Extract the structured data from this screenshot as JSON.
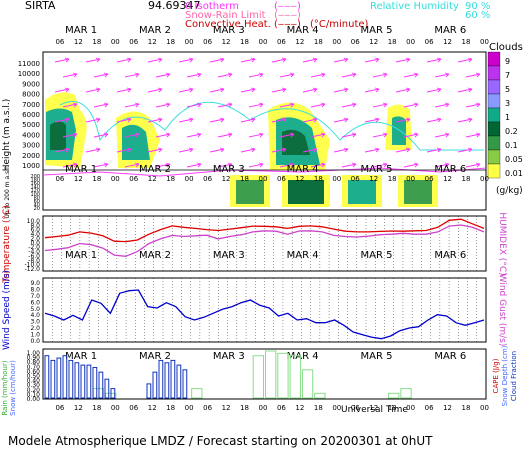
{
  "header": {
    "station": "SIRTA",
    "value": "94.69347",
    "legend": [
      {
        "label": "0 Isotherm",
        "color": "#ff33ff"
      },
      {
        "label": "Snow-Rain Limit",
        "color": "#ff66aa"
      },
      {
        "label": "Convective Heat.",
        "color": "#cc0000"
      }
    ],
    "convective_unit": "(°C/minute)",
    "rh_label": "Relative Humidity",
    "rh_values": [
      "90 %",
      "60 %"
    ],
    "rh_color": "#33dddd"
  },
  "footer": {
    "universal_time": "Universal Time",
    "caption": "Modele Atmospherique LMDZ / Forecast starting on 20200301 at 0hUT"
  },
  "colorbar": {
    "title": "Clouds",
    "unit": "(g/kg)",
    "ticks": [
      "9",
      "7",
      "5",
      "3",
      "1",
      "0.2",
      "0.1",
      "0.05",
      "0.01"
    ],
    "colors": [
      "#cc00cc",
      "#bb33ee",
      "#9966ff",
      "#8899ff",
      "#11aa88",
      "#006633",
      "#339944",
      "#88cc44",
      "#ffff44"
    ]
  },
  "chart_data": {
    "type": "meteogram",
    "days": [
      "MAR 1",
      "MAR 2",
      "MAR 3",
      "MAR 4",
      "MAR 5",
      "MAR 6"
    ],
    "hour_ticks": [
      "06",
      "12",
      "18",
      "00"
    ],
    "panels": {
      "clouds": {
        "ylabel": "Height (m a.s.l.)",
        "ylabel2": "Up to 200 m a.s.l.",
        "yticks": [
          "11000",
          "10000",
          "9000",
          "8000",
          "7000",
          "6000",
          "5000",
          "4000",
          "3000",
          "2000",
          "1000"
        ],
        "yticks_low": [
          "200",
          "180",
          "160",
          "140",
          "120",
          "100",
          "80",
          "60",
          "40",
          "20"
        ]
      },
      "temperature": {
        "ylabel": "Temperature (°C)",
        "ylabel2": "HUMIDEX (°C)",
        "yticks": [
          "10.0",
          "8.0",
          "6.0",
          "4.0",
          "2.0",
          "0.0",
          "-2.0",
          "-4.0",
          "-6.0",
          "-8.0",
          "-10.0",
          "-12.0"
        ],
        "ylim": [
          -12,
          10
        ],
        "series": [
          {
            "name": "Temperature",
            "color": "#dd0000",
            "values": [
              1.5,
              2.0,
              2.6,
              4.0,
              3.5,
              2.3,
              0.0,
              -0.2,
              0.5,
              3.0,
              5.0,
              6.6,
              6.0,
              5.5,
              5.0,
              4.6,
              5.2,
              5.8,
              6.5,
              6.4,
              6.2,
              5.5,
              6.4,
              6.6,
              6.2,
              5.2,
              4.3,
              4.0,
              4.0,
              4.2,
              4.4,
              4.3,
              4.5,
              4.6,
              6.0,
              9.0,
              9.5,
              7.5,
              5.5
            ]
          },
          {
            "name": "Humidex",
            "color": "#cc44cc",
            "values": [
              -4.0,
              -3.5,
              -2.8,
              -1.0,
              -1.5,
              -3.0,
              -6.0,
              -6.5,
              -4.5,
              -1.0,
              1.0,
              2.5,
              2.0,
              2.3,
              2.6,
              1.0,
              2.0,
              2.8,
              4.0,
              4.5,
              4.3,
              3.0,
              4.4,
              4.5,
              4.0,
              2.5,
              2.0,
              1.8,
              2.2,
              2.8,
              3.0,
              3.4,
              3.0,
              3.0,
              4.0,
              6.5,
              7.0,
              6.0,
              4.0
            ]
          }
        ]
      },
      "wind": {
        "ylabel": "Wind Speed (m/s)",
        "ylabel2": "Wind Gust (m/s)",
        "yticks": [
          "9.0",
          "8.0",
          "7.0",
          "6.0",
          "5.0",
          "4.0",
          "3.0",
          "2.0",
          "1.0",
          "0.0"
        ],
        "ylim": [
          0,
          9
        ],
        "series": [
          {
            "name": "Wind Speed",
            "color": "#0000cc",
            "values": [
              4.0,
              3.6,
              3.0,
              3.7,
              3.0,
              6.0,
              5.5,
              4.0,
              7.0,
              7.4,
              7.5,
              5.0,
              4.8,
              5.6,
              5.0,
              3.5,
              3.0,
              3.4,
              4.0,
              4.6,
              5.0,
              5.6,
              6.0,
              5.2,
              4.8,
              3.6,
              4.0,
              3.0,
              3.2,
              2.6,
              2.6,
              3.0,
              2.2,
              1.2,
              0.8,
              0.4,
              0.2,
              0.6,
              1.4,
              1.8,
              2.0,
              3.0,
              3.8,
              3.6,
              2.6,
              2.2,
              2.6,
              3.0
            ]
          }
        ]
      },
      "precip": {
        "ylabel": "Rain (mm/hour)",
        "ylabel2": "Snow (cm/hour)",
        "ylabel3": "CAPE (J/g)",
        "ylabel4": "Snow Depth (cm)",
        "ylabel5": "Cloud Fraction",
        "yticks": [
          "1.00",
          "0.90",
          "0.80",
          "0.70",
          "0.60",
          "0.50",
          "0.40",
          "0.30",
          "0.20",
          "0.10",
          "0.00"
        ],
        "ylim": [
          0,
          1
        ],
        "series": [
          {
            "name": "Cloud Fraction",
            "color": "#1133bb",
            "values": [
              0.9,
              0.8,
              0.85,
              0.9,
              0.8,
              0.75,
              0.7,
              0.7,
              0.65,
              0.55,
              0.4,
              0.2,
              0.0,
              0.0,
              0.0,
              0.0,
              0.0,
              0.3,
              0.55,
              0.8,
              0.75,
              0.8,
              0.7,
              0.6
            ]
          },
          {
            "name": "Rain",
            "color": "#88dd88",
            "values": [
              0,
              0,
              0,
              0,
              0.2,
              0.1,
              0,
              0,
              0,
              0,
              0,
              0,
              0.2,
              0,
              0,
              0,
              0,
              0.9,
              1.0,
              0.95,
              0.9,
              0.6,
              0.1,
              0,
              0,
              0,
              0,
              0,
              0.1,
              0.2,
              0,
              0,
              0,
              0,
              0,
              0
            ]
          }
        ]
      }
    }
  }
}
